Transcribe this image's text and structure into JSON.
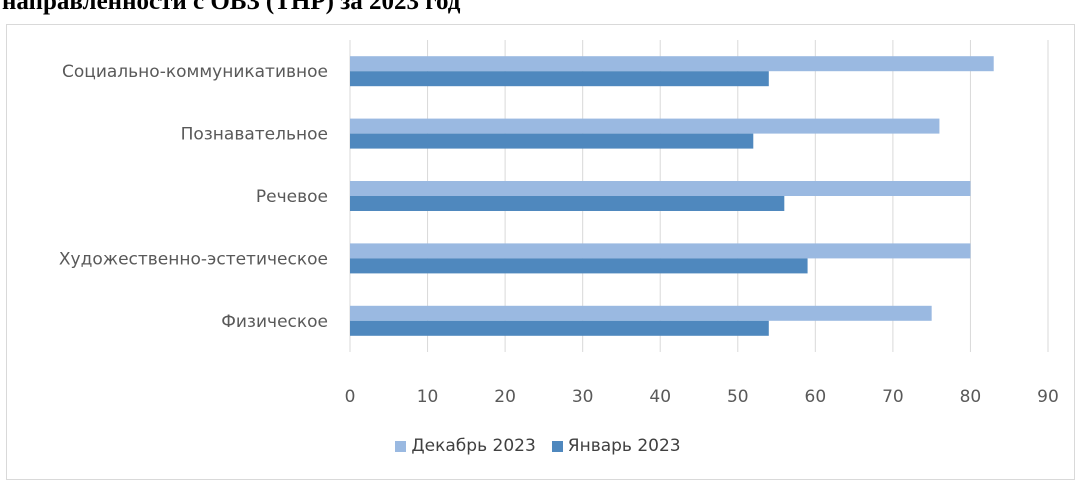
{
  "document": {
    "title_fragment": "направленности с ОВЗ (ТНР) за 2023 год"
  },
  "chart_data": {
    "type": "bar",
    "orientation": "horizontal",
    "categories": [
      "Социально-коммуникативное",
      "Познавательное",
      "Речевое",
      "Художественно-эстетическое",
      "Физическое"
    ],
    "series": [
      {
        "name": "Декабрь 2023",
        "color": "#9ab9e1",
        "values": [
          83,
          76,
          80,
          80,
          75
        ]
      },
      {
        "name": "Январь 2023",
        "color": "#4f88be",
        "values": [
          54,
          52,
          56,
          59,
          54
        ]
      }
    ],
    "xlim": [
      0,
      90
    ],
    "xticks": [
      "0",
      "10",
      "20",
      "30",
      "40",
      "50",
      "60",
      "70",
      "80",
      "90"
    ],
    "grid": "vertical",
    "legend_position": "bottom"
  }
}
